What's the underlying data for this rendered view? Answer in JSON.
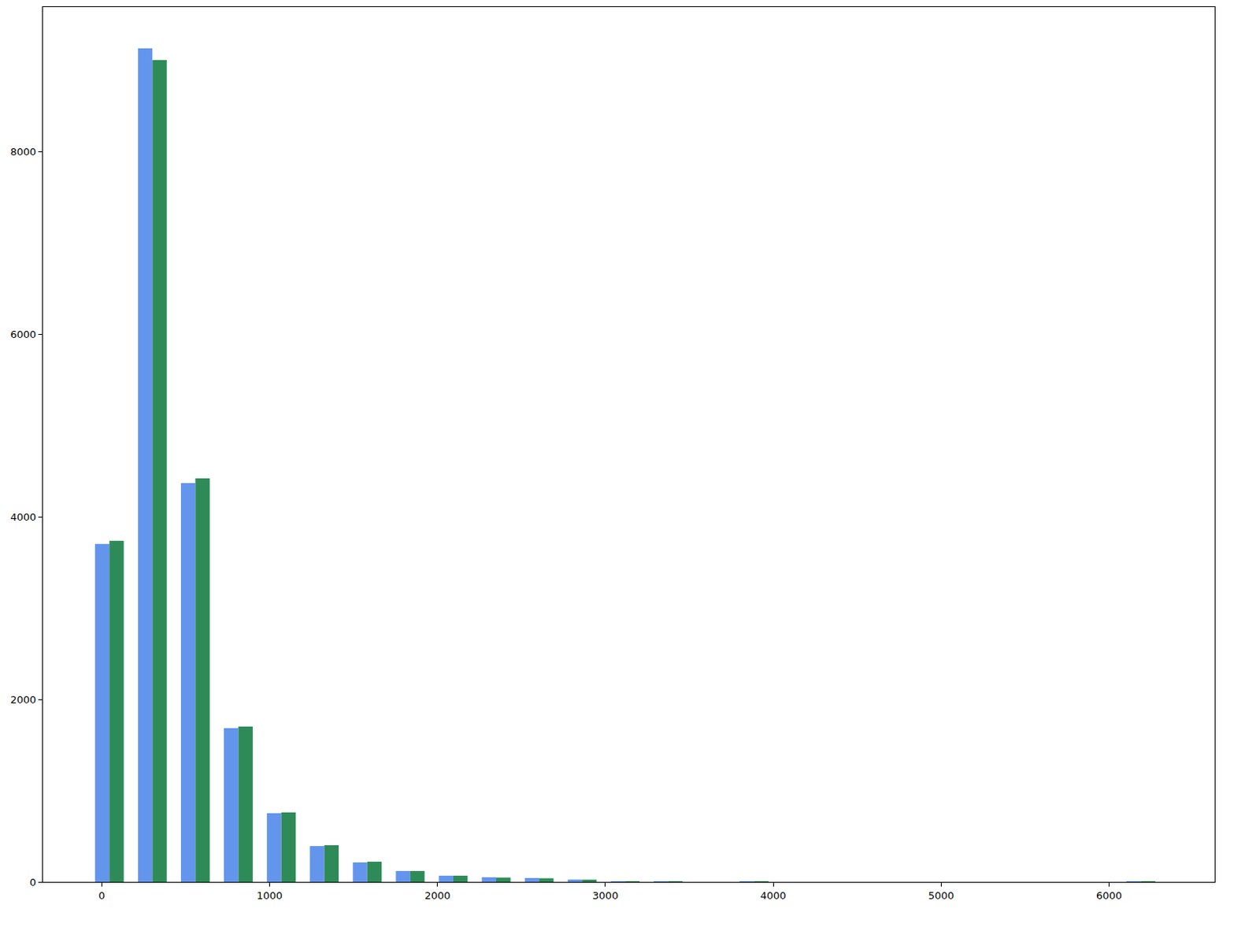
{
  "chart_data": {
    "type": "histogram",
    "bins": [
      -82,
      174,
      430,
      686,
      942,
      1198,
      1454,
      1710,
      1966,
      2222,
      2478,
      2734,
      2990,
      3246,
      3502,
      3758,
      4014,
      4270,
      4526,
      4782,
      5038,
      5294,
      5550,
      5806,
      6062,
      6318
    ],
    "series": [
      {
        "color": "#6495ed",
        "values": [
          3704,
          9136,
          4371,
          1685,
          753,
          393,
          214,
          120,
          68,
          51,
          43,
          26,
          8,
          6,
          0,
          4,
          0,
          0,
          0,
          0,
          0,
          0,
          0,
          0,
          1
        ]
      },
      {
        "color": "#2e8b57",
        "values": [
          3738,
          9008,
          4423,
          1702,
          761,
          402,
          222,
          120,
          68,
          48,
          40,
          25,
          8,
          6,
          0,
          4,
          0,
          0,
          0,
          0,
          0,
          0,
          0,
          0,
          1
        ]
      }
    ],
    "xlim": [
      -350,
      6630
    ],
    "xticks": [
      0,
      1000,
      2000,
      3000,
      4000,
      5000,
      6000
    ],
    "ylim": [
      0,
      9590
    ],
    "yticks": [
      0,
      2000,
      4000,
      6000,
      8000
    ],
    "grid": false
  }
}
